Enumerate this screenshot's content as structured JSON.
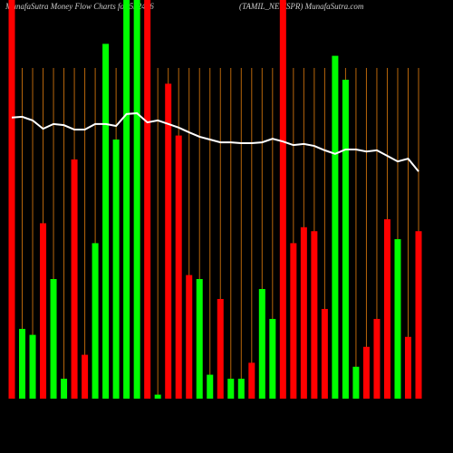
{
  "chart_data": {
    "type": "bar",
    "title": "MunafaSutra  Money Flow  Charts for 532426",
    "subtitle": "(TAMIL_NEWSPR) MunafaSutra.com",
    "values": [
      100,
      17.5,
      16,
      44,
      30,
      5,
      60,
      11,
      39,
      89,
      65,
      100,
      100,
      100,
      1,
      79,
      66,
      31,
      30,
      6,
      25,
      5,
      5,
      9,
      27.5,
      20,
      100,
      39,
      43,
      42,
      22.5,
      86,
      80,
      8,
      13,
      20,
      45,
      40,
      15.5,
      42
    ],
    "colors": [
      "#ff0000",
      "#00ff00",
      "#00ff00",
      "#ff0000",
      "#00ff00",
      "#00ff00",
      "#ff0000",
      "#ff0000",
      "#00ff00",
      "#00ff00",
      "#00ff00",
      "#00ff00",
      "#00ff00",
      "#ff0000",
      "#00ff00",
      "#ff0000",
      "#ff0000",
      "#ff0000",
      "#00ff00",
      "#00ff00",
      "#ff0000",
      "#00ff00",
      "#00ff00",
      "#ff0000",
      "#00ff00",
      "#00ff00",
      "#ff0000",
      "#ff0000",
      "#ff0000",
      "#ff0000",
      "#ff0000",
      "#00ff00",
      "#00ff00",
      "#00ff00",
      "#ff0000",
      "#ff0000",
      "#ff0000",
      "#00ff00",
      "#ff0000",
      "#ff0000"
    ],
    "line": {
      "color": "#ffffff",
      "values": [
        70.5,
        70.7,
        69.8,
        67.7,
        68.9,
        68.6,
        67.5,
        67.5,
        68.9,
        68.9,
        68.4,
        71.4,
        71.6,
        69.3,
        69.8,
        68.9,
        68,
        66.8,
        65.7,
        65,
        64.3,
        64.3,
        64.1,
        64.1,
        64.3,
        65.2,
        64.5,
        63.6,
        63.9,
        63.4,
        62.3,
        61.4,
        62.5,
        62.5,
        62,
        62.3,
        60.9,
        59.5,
        60.2,
        57
      ]
    },
    "ylim": [
      0,
      100
    ],
    "grid": true,
    "grid_color": "#b8660b",
    "background": "#000000"
  }
}
